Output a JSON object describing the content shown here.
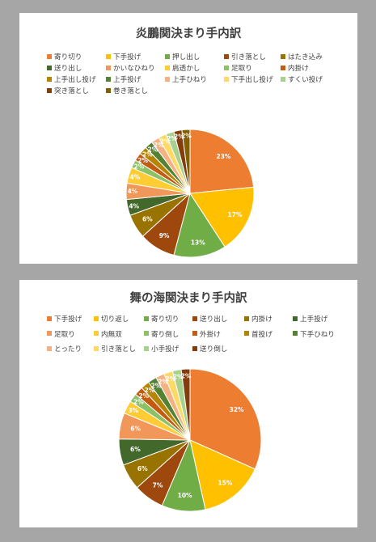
{
  "chart_data": [
    {
      "type": "pie",
      "title": "炎鵬関決まり手内訳",
      "categories": [
        "寄り切り",
        "下手投げ",
        "押し出し",
        "引き落とし",
        "はたき込み",
        "送り出し",
        "かいなひねり",
        "肩透かし",
        "足取り",
        "内掛け",
        "上手出し投げ",
        "上手投げ",
        "上手ひねり",
        "下手出し投げ",
        "すくい投げ",
        "突き落とし",
        "巻き落とし"
      ],
      "values": [
        23,
        17,
        13,
        9,
        6,
        4,
        4,
        4,
        2,
        2,
        2,
        2,
        2,
        2,
        2,
        2,
        2
      ],
      "labels": [
        "23%",
        "17%",
        "13%",
        "9%",
        "6%",
        "4%",
        "4%",
        "4%",
        "2%",
        "2%",
        "2%",
        "2%",
        "2%",
        "2%",
        "2%",
        "2%",
        "2%"
      ],
      "colors": [
        "#ED7D31",
        "#FFC000",
        "#70AD47",
        "#9E480E",
        "#997300",
        "#43682B",
        "#F1975A",
        "#FFCD33",
        "#8CC168",
        "#C55A11",
        "#B58400",
        "#548235",
        "#F4B183",
        "#FFD966",
        "#A9D18E",
        "#843C0C",
        "#806000"
      ],
      "legend_position": "top"
    },
    {
      "type": "pie",
      "title": "舞の海関決まり手内訳",
      "categories": [
        "下手投げ",
        "切り返し",
        "寄り切り",
        "送り出し",
        "内掛け",
        "上手投げ",
        "足取り",
        "内無双",
        "寄り倒し",
        "外掛け",
        "首投げ",
        "下手ひねり",
        "とったり",
        "引き落とし",
        "小手投げ",
        "送り倒し"
      ],
      "values": [
        32,
        15,
        10,
        7,
        6,
        6,
        6,
        3,
        2,
        2,
        2,
        2,
        2,
        2,
        2,
        2
      ],
      "labels": [
        "32%",
        "15%",
        "10%",
        "7%",
        "6%",
        "6%",
        "6%",
        "3%",
        "2%",
        "2%",
        "2%",
        "2%",
        "2%",
        "2%",
        "2%",
        "2%"
      ],
      "colors": [
        "#ED7D31",
        "#FFC000",
        "#70AD47",
        "#9E480E",
        "#997300",
        "#43682B",
        "#F1975A",
        "#FFCD33",
        "#8CC168",
        "#C55A11",
        "#B58400",
        "#548235",
        "#F4B183",
        "#FFD966",
        "#A9D18E",
        "#843C0C"
      ],
      "legend_position": "top"
    }
  ]
}
